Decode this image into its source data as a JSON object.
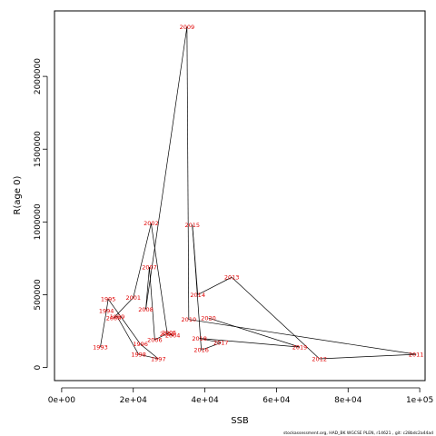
{
  "chart_data": {
    "type": "line",
    "title": "",
    "xlabel": "SSB",
    "ylabel": "R(age 0)",
    "xlim": [
      -2000,
      101500
    ],
    "ylim": [
      -90000,
      2450000
    ],
    "x_ticks": [
      0,
      20000,
      40000,
      60000,
      80000,
      100000
    ],
    "x_tick_labels": [
      "0e+00",
      "2e+04",
      "4e+04",
      "6e+04",
      "8e+04",
      "1e+05"
    ],
    "y_ticks": [
      0,
      500000,
      1000000,
      1500000,
      2000000
    ],
    "y_tick_labels": [
      "0",
      "500000",
      "1000000",
      "1500000",
      "2000000"
    ],
    "series": [
      {
        "line_color": "#000000",
        "label_color": "#e00000",
        "points": [
          {
            "year": "1993",
            "x": 10800,
            "y": 140000
          },
          {
            "year": "1994",
            "x": 12500,
            "y": 390000
          },
          {
            "year": "1995",
            "x": 13000,
            "y": 470000
          },
          {
            "year": "1996",
            "x": 22000,
            "y": 160000
          },
          {
            "year": "1997",
            "x": 27000,
            "y": 60000
          },
          {
            "year": "1998",
            "x": 21500,
            "y": 90000
          },
          {
            "year": "1999",
            "x": 15500,
            "y": 350000
          },
          {
            "year": "2000",
            "x": 14500,
            "y": 340000
          },
          {
            "year": "2001",
            "x": 20000,
            "y": 480000
          },
          {
            "year": "2002",
            "x": 25000,
            "y": 990000
          },
          {
            "year": "2003",
            "x": 29500,
            "y": 230000
          },
          {
            "year": "2004",
            "x": 31000,
            "y": 220000
          },
          {
            "year": "2005",
            "x": 30000,
            "y": 240000
          },
          {
            "year": "2006",
            "x": 26000,
            "y": 190000
          },
          {
            "year": "2007",
            "x": 24500,
            "y": 690000
          },
          {
            "year": "2008",
            "x": 23500,
            "y": 400000
          },
          {
            "year": "2009",
            "x": 35000,
            "y": 2340000
          },
          {
            "year": "2010",
            "x": 35500,
            "y": 330000
          },
          {
            "year": "2011",
            "x": 99000,
            "y": 90000
          },
          {
            "year": "2012",
            "x": 72000,
            "y": 60000
          },
          {
            "year": "2013",
            "x": 47500,
            "y": 620000
          },
          {
            "year": "2014",
            "x": 38000,
            "y": 500000
          },
          {
            "year": "2015",
            "x": 36500,
            "y": 980000
          },
          {
            "year": "2016",
            "x": 39000,
            "y": 120000
          },
          {
            "year": "2017",
            "x": 44500,
            "y": 170000
          },
          {
            "year": "2018",
            "x": 38500,
            "y": 200000
          },
          {
            "year": "2019",
            "x": 66500,
            "y": 140000
          },
          {
            "year": "2020",
            "x": 41000,
            "y": 340000
          }
        ]
      }
    ],
    "grid": false,
    "legend": "none"
  },
  "source_note": "stockassessment.org, HAD_BK WGCSE PLEN, r14621 , git: c28bdc2a44ad"
}
